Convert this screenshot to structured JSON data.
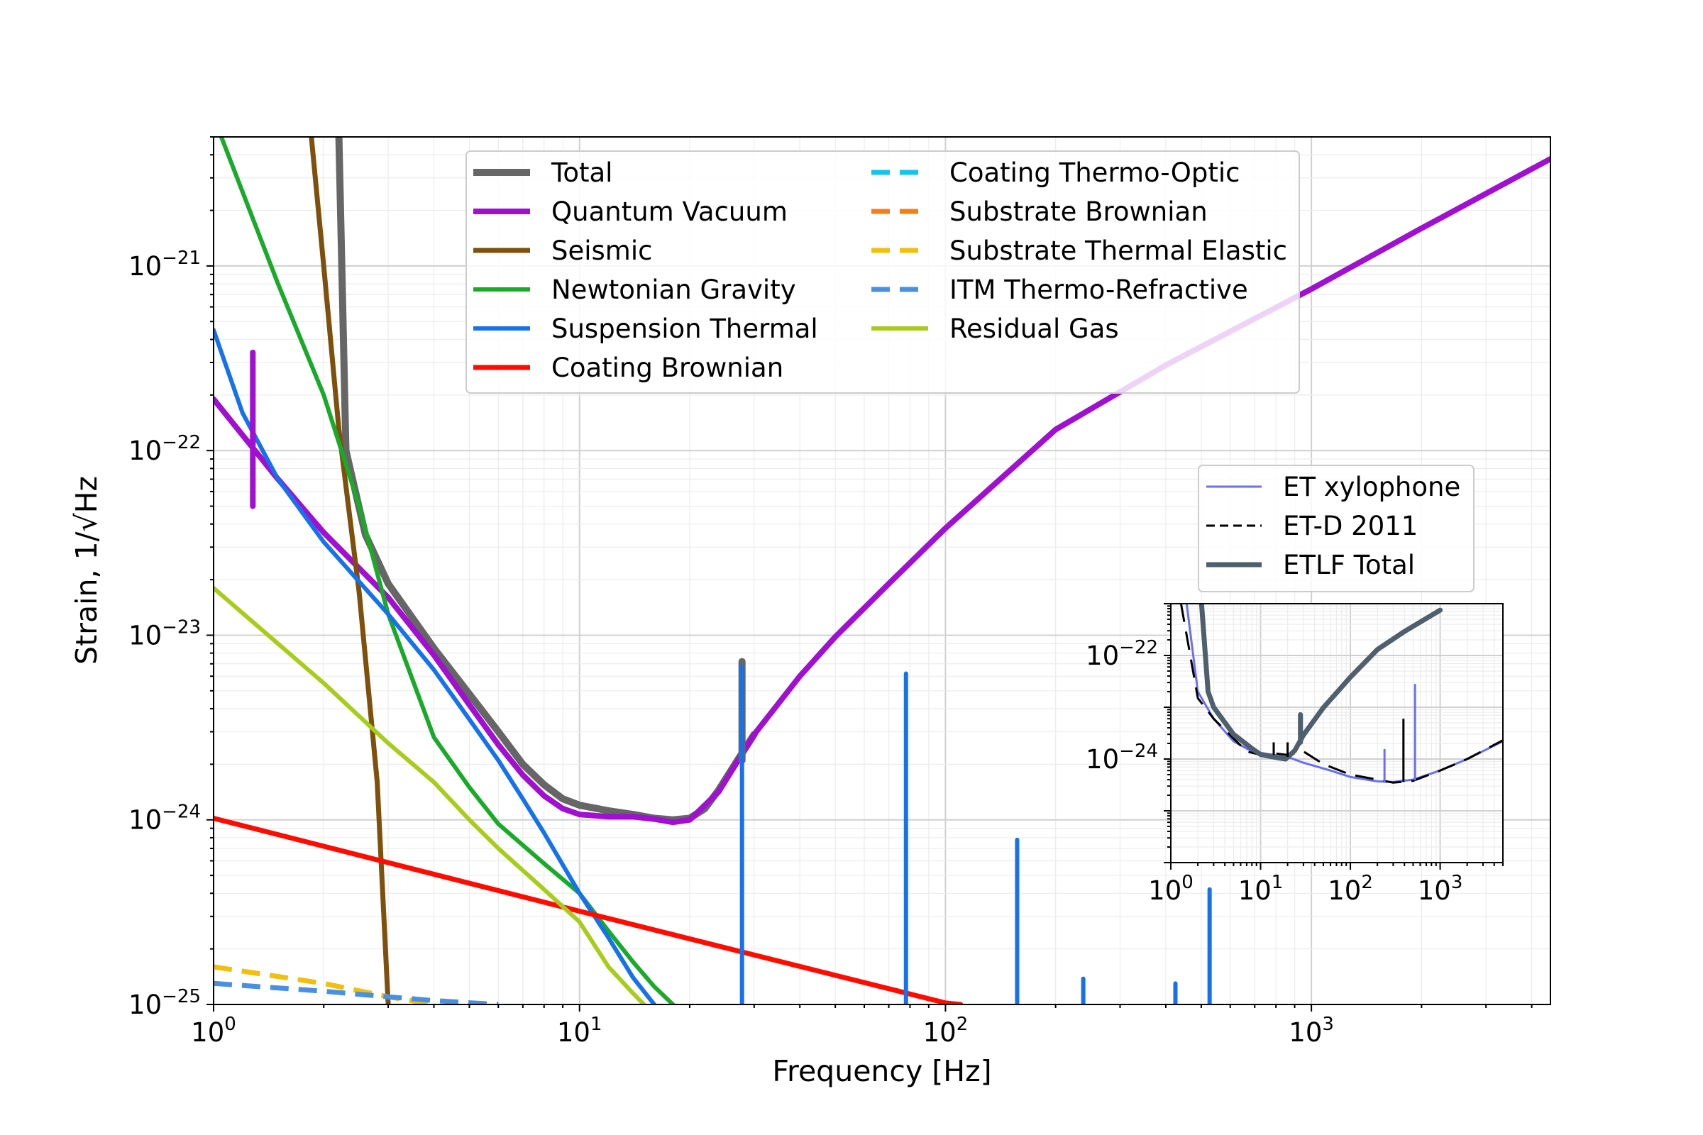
{
  "chart_data": [
    {
      "type": "line",
      "xlabel": "Frequency [Hz]",
      "ylabel": "Strain, 1/√Hz",
      "xscale": "log",
      "yscale": "log",
      "xlim": [
        1,
        4500
      ],
      "ylim": [
        1e-25,
        5e-21
      ],
      "grid": true,
      "legend_placement": "top-center",
      "x_ticks": [
        {
          "value": 1,
          "base": "10",
          "exp": "0"
        },
        {
          "value": 10,
          "base": "10",
          "exp": "1"
        },
        {
          "value": 100,
          "base": "10",
          "exp": "2"
        },
        {
          "value": 1000,
          "base": "10",
          "exp": "3"
        }
      ],
      "y_ticks": [
        {
          "value": 1e-25,
          "base": "10",
          "exp": "−25"
        },
        {
          "value": 1e-24,
          "base": "10",
          "exp": "−24"
        },
        {
          "value": 1e-23,
          "base": "10",
          "exp": "−23"
        },
        {
          "value": 1e-22,
          "base": "10",
          "exp": "−22"
        },
        {
          "value": 1e-21,
          "base": "10",
          "exp": "−21"
        }
      ],
      "series": [
        {
          "name": "Total",
          "color": "#666666",
          "dash": false,
          "width": 10,
          "points": [
            [
              2.2,
              5e-21
            ],
            [
              2.3,
              1e-22
            ],
            [
              2.6,
              3.5e-23
            ],
            [
              3,
              1.9e-23
            ],
            [
              4,
              8.5e-24
            ],
            [
              5,
              4.8e-24
            ],
            [
              6,
              3e-24
            ],
            [
              7,
              2e-24
            ],
            [
              8,
              1.55e-24
            ],
            [
              9,
              1.3e-24
            ],
            [
              10,
              1.2e-24
            ],
            [
              12,
              1.12e-24
            ],
            [
              14,
              1.07e-24
            ],
            [
              16,
              1.02e-24
            ],
            [
              18,
              1e-24
            ],
            [
              20,
              1.02e-24
            ],
            [
              22,
              1.15e-24
            ],
            [
              24,
              1.45e-24
            ],
            [
              27,
              2.1e-24
            ],
            [
              30,
              2.9e-24
            ]
          ]
        },
        {
          "name": "Quantum Vacuum",
          "color": "#a10fd0",
          "dash": false,
          "width": 8,
          "points": [
            [
              1,
              1.9e-22
            ],
            [
              1.5,
              7e-23
            ],
            [
              2,
              3.6e-23
            ],
            [
              3,
              1.6e-23
            ],
            [
              4,
              7.8e-24
            ],
            [
              5,
              4.2e-24
            ],
            [
              6,
              2.55e-24
            ],
            [
              7,
              1.75e-24
            ],
            [
              8,
              1.35e-24
            ],
            [
              9,
              1.15e-24
            ],
            [
              10,
              1.07e-24
            ],
            [
              12,
              1.04e-24
            ],
            [
              14,
              1.04e-24
            ],
            [
              16,
              1.01e-24
            ],
            [
              18,
              9.7e-25
            ],
            [
              20,
              1e-24
            ],
            [
              24,
              1.42e-24
            ],
            [
              30,
              2.9e-24
            ],
            [
              40,
              6e-24
            ],
            [
              50,
              9.8e-24
            ],
            [
              70,
              1.9e-23
            ],
            [
              100,
              3.8e-23
            ],
            [
              200,
              1.3e-22
            ],
            [
              400,
              2.9e-22
            ],
            [
              1000,
              7.5e-22
            ],
            [
              2000,
              1.6e-21
            ],
            [
              4500,
              3.8e-21
            ]
          ]
        },
        {
          "name": "Seismic",
          "color": "#7f4f0c",
          "dash": false,
          "width": 7,
          "points": [
            [
              1.85,
              5e-21
            ],
            [
              2,
              1e-21
            ],
            [
              2.2,
              1.3e-22
            ],
            [
              2.5,
              1.7e-23
            ],
            [
              2.8,
              1.6e-24
            ],
            [
              3.0,
              1e-25
            ]
          ]
        },
        {
          "name": "Newtonian Gravity",
          "color": "#1aaa2a",
          "dash": false,
          "width": 6,
          "points": [
            [
              1.05,
              5e-21
            ],
            [
              1.5,
              8e-22
            ],
            [
              2,
              2e-22
            ],
            [
              2.5,
              5e-23
            ],
            [
              3,
              1.3e-23
            ],
            [
              4,
              2.8e-24
            ],
            [
              5,
              1.5e-24
            ],
            [
              6,
              9.5e-25
            ],
            [
              8,
              5.8e-25
            ],
            [
              10,
              4e-25
            ],
            [
              12,
              2.5e-25
            ],
            [
              14,
              1.7e-25
            ],
            [
              16,
              1.25e-25
            ],
            [
              18,
              1e-25
            ]
          ]
        },
        {
          "name": "Suspension Thermal",
          "color": "#1572ec",
          "dash": false,
          "width": 6,
          "points": [
            [
              1,
              4.5e-22
            ],
            [
              1.2,
              1.6e-22
            ],
            [
              1.5,
              7e-23
            ],
            [
              2,
              3.2e-23
            ],
            [
              3,
              1.3e-23
            ],
            [
              4,
              6.5e-24
            ],
            [
              5,
              3.5e-24
            ],
            [
              6,
              2.1e-24
            ],
            [
              7,
              1.3e-24
            ],
            [
              8,
              8.5e-25
            ],
            [
              10,
              4e-25
            ],
            [
              12,
              2.3e-25
            ],
            [
              14,
              1.4e-25
            ],
            [
              16,
              1e-25
            ]
          ]
        },
        {
          "name": "Coating Brownian",
          "color": "#ff0c00",
          "dash": false,
          "width": 7,
          "points": [
            [
              1,
              1.02e-24
            ],
            [
              10,
              3.2e-25
            ],
            [
              100,
              1.02e-25
            ],
            [
              110,
              1e-25
            ]
          ]
        },
        {
          "name": "Coating Thermo-Optic",
          "color": "#15c4ee",
          "dash": true,
          "width": 7,
          "points": []
        },
        {
          "name": "Substrate Brownian",
          "color": "#f57f15",
          "dash": true,
          "width": 7,
          "points": []
        },
        {
          "name": "Substrate Thermal Elastic",
          "color": "#f2c00c",
          "dash": true,
          "width": 7,
          "points": [
            [
              1,
              1.6e-25
            ],
            [
              2,
              1.3e-25
            ],
            [
              3,
              1.1e-25
            ],
            [
              4,
              1e-25
            ]
          ]
        },
        {
          "name": "ITM Thermo-Refractive",
          "color": "#4a90e2",
          "dash": true,
          "width": 7,
          "points": [
            [
              1,
              1.3e-25
            ],
            [
              2,
              1.18e-25
            ],
            [
              3,
              1.1e-25
            ],
            [
              4,
              1.05e-25
            ],
            [
              6,
              1e-25
            ]
          ]
        },
        {
          "name": "Residual Gas",
          "color": "#a8cc1a",
          "dash": false,
          "width": 6,
          "points": [
            [
              1,
              1.8e-23
            ],
            [
              2,
              5.5e-24
            ],
            [
              3,
              2.6e-24
            ],
            [
              4,
              1.6e-24
            ],
            [
              5,
              1e-24
            ],
            [
              6,
              7e-25
            ],
            [
              8,
              4.2e-25
            ],
            [
              10,
              2.8e-25
            ],
            [
              12,
              1.6e-25
            ],
            [
              14,
              1.15e-25
            ],
            [
              15,
              1e-25
            ]
          ]
        }
      ],
      "spikes": [
        {
          "series": "Quantum Vacuum",
          "x": 1.28,
          "y_low": 5e-23,
          "y_high": 3.4e-22
        },
        {
          "series": "Total",
          "x": 27.8,
          "y_low": 2.1e-24,
          "y_high": 7.2e-24
        },
        {
          "series": "Suspension Thermal",
          "x": 27.8,
          "y_low": 1e-25,
          "y_high": 6.8e-24
        },
        {
          "series": "Suspension Thermal",
          "x": 78,
          "y_low": 1e-25,
          "y_high": 6.2e-24
        },
        {
          "series": "Suspension Thermal",
          "x": 157,
          "y_low": 1e-25,
          "y_high": 7.8e-25
        },
        {
          "series": "Suspension Thermal",
          "x": 238,
          "y_low": 1e-25,
          "y_high": 1.38e-25
        },
        {
          "series": "Suspension Thermal",
          "x": 425,
          "y_low": 1e-25,
          "y_high": 1.3e-25
        },
        {
          "series": "Suspension Thermal",
          "x": 527,
          "y_low": 1e-25,
          "y_high": 4.2e-25
        }
      ]
    },
    {
      "type": "line",
      "xscale": "log",
      "yscale": "log",
      "xlim": [
        1,
        5000
      ],
      "ylim": [
        1e-26,
        1e-21
      ],
      "grid": true,
      "legend_placement": "above",
      "x_ticks": [
        {
          "value": 1,
          "base": "10",
          "exp": "0"
        },
        {
          "value": 10,
          "base": "10",
          "exp": "1"
        },
        {
          "value": 100,
          "base": "10",
          "exp": "2"
        },
        {
          "value": 1000,
          "base": "10",
          "exp": "3"
        }
      ],
      "y_ticks": [
        {
          "value": 1e-24,
          "base": "10",
          "exp": "−24"
        },
        {
          "value": 1e-22,
          "base": "10",
          "exp": "−22"
        }
      ],
      "series": [
        {
          "name": "ET xylophone",
          "color": "#6a6ff2",
          "dash": false,
          "width": 3,
          "points": [
            [
              1.5,
              1e-21
            ],
            [
              2,
              2e-23
            ],
            [
              3,
              6e-24
            ],
            [
              5,
              2.2e-24
            ],
            [
              8,
              1.4e-24
            ],
            [
              12,
              1.25e-24
            ],
            [
              20,
              1.1e-24
            ],
            [
              30,
              8.5e-25
            ],
            [
              60,
              6e-25
            ],
            [
              100,
              4.5e-25
            ],
            [
              200,
              3.7e-25
            ],
            [
              300,
              3.6e-25
            ],
            [
              500,
              4e-25
            ],
            [
              1000,
              6e-25
            ],
            [
              2000,
              1e-24
            ],
            [
              5000,
              2.2e-24
            ]
          ]
        },
        {
          "name": "ET-D 2011",
          "color": "#000000",
          "dash": true,
          "width": 3,
          "points": [
            [
              1.3,
              1e-21
            ],
            [
              2,
              1.5e-23
            ],
            [
              3,
              6e-24
            ],
            [
              5,
              2.5e-24
            ],
            [
              7,
              1.4e-24
            ],
            [
              10,
              1.2e-24
            ],
            [
              14,
              1.3e-24
            ],
            [
              20,
              1.2e-24
            ],
            [
              30,
              1.4e-24
            ],
            [
              50,
              8e-25
            ],
            [
              100,
              5e-25
            ],
            [
              200,
              4e-25
            ],
            [
              300,
              3.5e-25
            ],
            [
              500,
              3.8e-25
            ],
            [
              1000,
              6e-25
            ],
            [
              2000,
              1e-24
            ],
            [
              5000,
              2.3e-24
            ]
          ]
        },
        {
          "name": "ETLF Total",
          "color": "#4f5f6e",
          "dash": false,
          "width": 7,
          "points": [
            [
              2.2,
              1e-21
            ],
            [
              2.6,
              2e-23
            ],
            [
              3,
              1e-23
            ],
            [
              5,
              3e-24
            ],
            [
              8,
              1.6e-24
            ],
            [
              10,
              1.22e-24
            ],
            [
              15,
              1.07e-24
            ],
            [
              19,
              1e-24
            ],
            [
              24,
              1.45e-24
            ],
            [
              30,
              2.9e-24
            ],
            [
              50,
              9.8e-24
            ],
            [
              100,
              3.8e-23
            ],
            [
              200,
              1.3e-22
            ],
            [
              400,
              2.9e-22
            ],
            [
              1000,
              7.5e-22
            ]
          ]
        }
      ],
      "spikes": [
        {
          "series": "ET-D 2011",
          "x": 14,
          "y_low": 1.2e-24,
          "y_high": 2.1e-24
        },
        {
          "series": "ET-D 2011",
          "x": 20,
          "y_low": 1.1e-24,
          "y_high": 2.1e-24
        },
        {
          "series": "ETLF Total",
          "x": 27.8,
          "y_low": 2.1e-24,
          "y_high": 7.2e-24
        },
        {
          "series": "ET xylophone",
          "x": 240,
          "y_low": 3.7e-25,
          "y_high": 1.5e-24
        },
        {
          "series": "ET xylophone",
          "x": 525,
          "y_low": 4e-25,
          "y_high": 2.7e-23
        },
        {
          "series": "ET-D 2011",
          "x": 390,
          "y_low": 3.6e-25,
          "y_high": 6e-24
        }
      ]
    }
  ]
}
